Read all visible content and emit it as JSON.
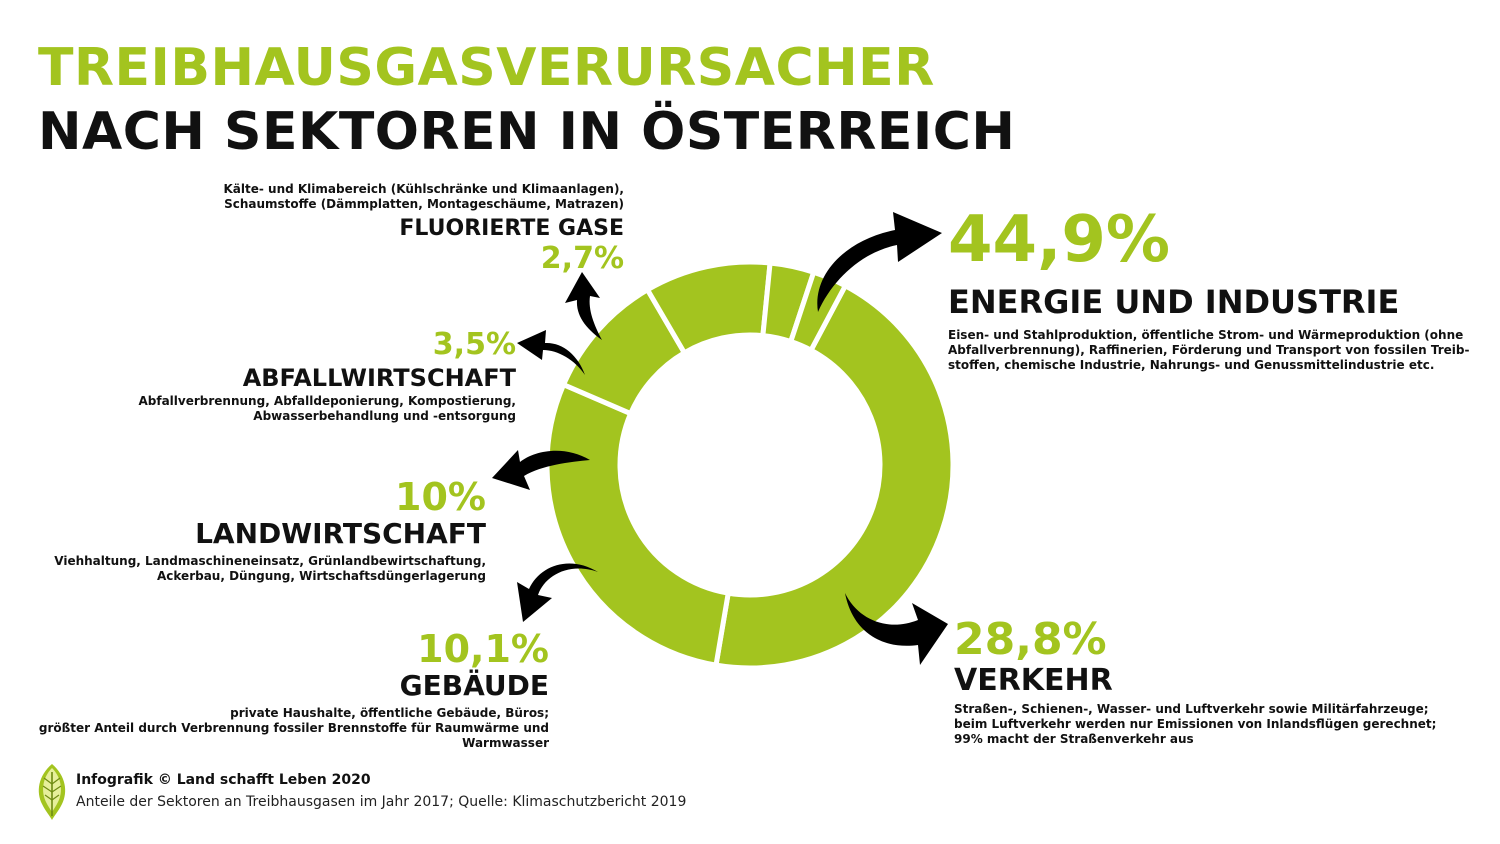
{
  "title": {
    "line1": "TREIBHAUSGASVERURSACHER",
    "line2": "NACH SEKTOREN IN ÖSTERREICH"
  },
  "colors": {
    "accent": "#a3c41f",
    "text": "#111111",
    "separator": "#ffffff",
    "arrow": "#000000"
  },
  "chart_data": {
    "type": "pie",
    "title": "TREIBHAUSGASVERURSACHER NACH SEKTOREN IN ÖSTERREICH",
    "donut": true,
    "categories": [
      "Energie und Industrie",
      "Verkehr",
      "Gebäude",
      "Landwirtschaft",
      "Abfallwirtschaft",
      "Fluorierte Gase"
    ],
    "values": [
      44.9,
      28.8,
      10.1,
      10,
      3.5,
      2.7
    ],
    "unit": "%"
  },
  "sectors": {
    "energie": {
      "pct": "44,9%",
      "name": "ENERGIE UND INDUSTRIE",
      "desc": [
        "Eisen- und Stahlproduktion, öffentliche Strom- und Wärmeproduktion (ohne",
        "Abfallverbrennung), Raffinerien, Förderung und Transport von fossilen Treib-",
        "stoffen, chemische Industrie, Nahrungs- und Genussmittelindustrie etc."
      ]
    },
    "verkehr": {
      "pct": "28,8%",
      "name": "VERKEHR",
      "desc": [
        "Straßen-, Schienen-, Wasser- und Luftverkehr sowie Militärfahrzeuge;",
        "beim Luftverkehr werden nur Emissionen von Inlandsflügen gerechnet;",
        "99% macht der Straßenverkehr aus"
      ]
    },
    "gebaeude": {
      "pct": "10,1%",
      "name": "GEBÄUDE",
      "desc": [
        "private Haushalte, öffentliche Gebäude, Büros;",
        "größter Anteil durch Verbrennung fossiler Brennstoffe für Raumwärme und",
        "Warmwasser"
      ]
    },
    "landwirtschaft": {
      "pct": "10%",
      "name": "LANDWIRTSCHAFT",
      "desc": [
        "Viehhaltung, Landmaschineneinsatz, Grünlandbewirtschaftung,",
        "Ackerbau, Düngung, Wirtschaftsdüngerlagerung"
      ]
    },
    "abfall": {
      "pct": "3,5%",
      "name": "ABFALLWIRTSCHAFT",
      "desc": [
        "Abfallverbrennung, Abfalldeponierung, Kompostierung,",
        "Abwasserbehandlung und -entsorgung"
      ]
    },
    "fluor": {
      "pct": "2,7%",
      "name": "FLUORIERTE GASE",
      "desc": [
        "Kälte- und Klimabereich (Kühlschränke und Klimaanlagen),",
        "Schaumstoffe (Dämmplatten, Montageschäume, Matrazen)"
      ]
    }
  },
  "footer": {
    "logo_icon": "leaf-logo-icon",
    "credit": "Infografik © Land schafft Leben 2020",
    "source": "Anteile der Sektoren an Treibhausgasen im Jahr 2017; Quelle: Klimaschutzbericht 2019"
  }
}
